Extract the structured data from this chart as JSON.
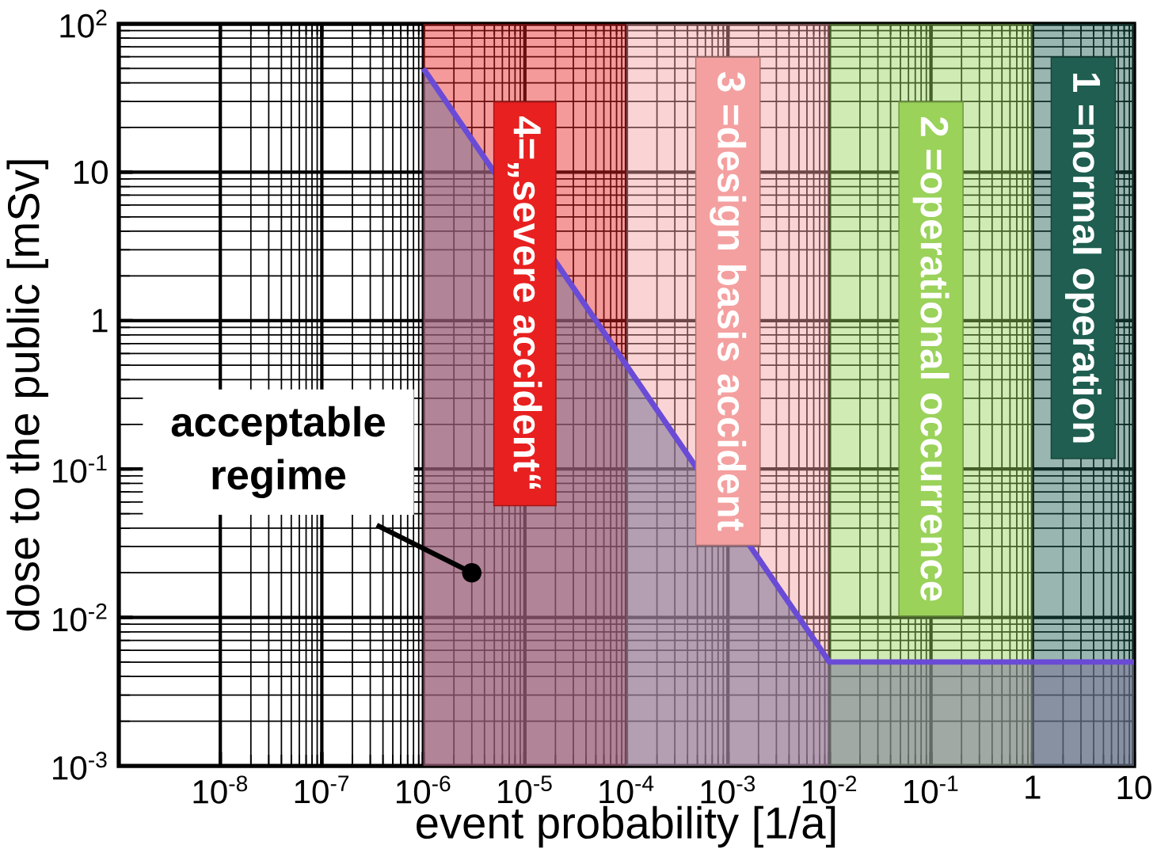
{
  "chart_data": {
    "type": "area",
    "xlabel": "event probability [1/a]",
    "ylabel": "dose to the public [mSv]",
    "x": [
      1e-06,
      0.01,
      10
    ],
    "series": [
      {
        "color": "#6a4bd6",
        "values": [
          50,
          0.005,
          0.005
        ]
      }
    ],
    "log": "xy",
    "grid": true,
    "xlim": [
      1e-09,
      10
    ],
    "ylim": [
      0.001,
      100
    ],
    "xticks": [
      {
        "value": 1e-08,
        "label": "10$^{-8}$"
      },
      {
        "value": 1e-07,
        "label": "10$^{-7}$"
      },
      {
        "value": 1e-06,
        "label": "10$^{-6}$"
      },
      {
        "value": 1e-05,
        "label": "10$^{-5}$"
      },
      {
        "value": 0.0001,
        "label": "10$^{-4}$"
      },
      {
        "value": 0.001,
        "label": "10$^{-3}$"
      },
      {
        "value": 0.01,
        "label": "10$^{-2}$"
      },
      {
        "value": 0.1,
        "label": "10$^{-1}$"
      },
      1,
      10
    ],
    "yticks": [
      {
        "value": 0.001,
        "label": "10$^{-3}$"
      },
      {
        "value": 0.01,
        "label": "10$^{-2}$"
      },
      {
        "value": 0.1,
        "label": "10$^{-1}$"
      },
      1,
      10,
      {
        "value": 100,
        "label": "10$^{2}$"
      }
    ],
    "bands": [
      {
        "axis": "x",
        "from": 1e-06,
        "to": 0.0001,
        "label": "4=„severe accident“",
        "color": "#e82020"
      },
      {
        "axis": "x",
        "from": 0.0001,
        "to": 0.01,
        "label": "3 =design basis accident",
        "color": "#f4a0a0"
      },
      {
        "axis": "x",
        "from": 0.01,
        "to": 1,
        "label": "2 =operational occurrence",
        "color": "#9ad25a"
      },
      {
        "axis": "x",
        "from": 1,
        "to": 10,
        "label": "1 =normal operation",
        "color": "#1f5e50"
      }
    ],
    "annotations": [
      {
        "text": "acceptable regime",
        "x": 3e-06,
        "y": 0.02
      }
    ]
  }
}
